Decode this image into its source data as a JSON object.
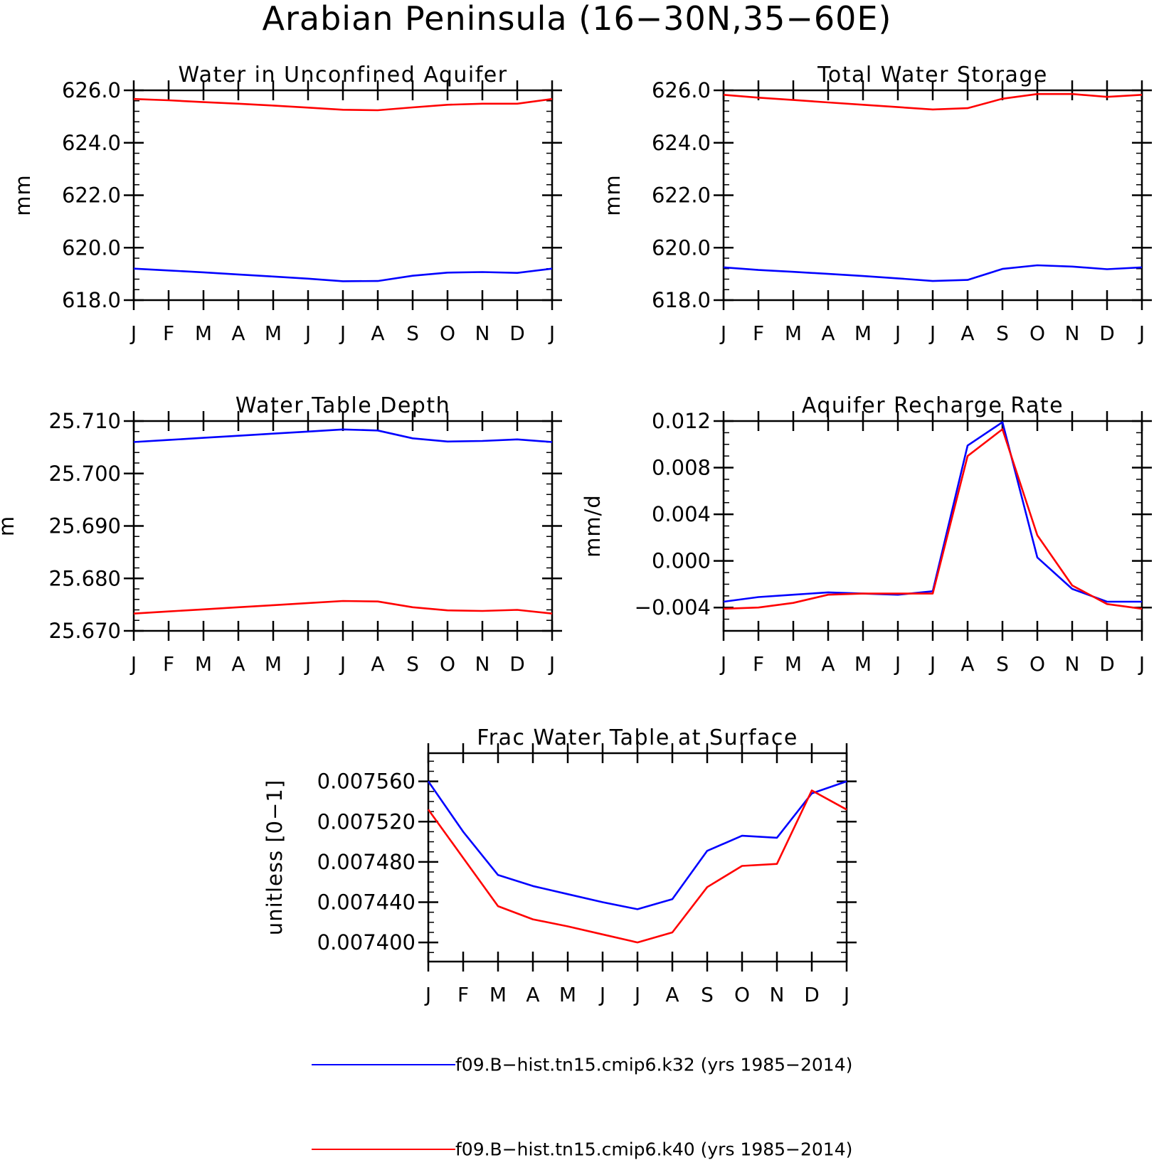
{
  "figure": {
    "title": "Arabian Peninsula (16−30N,35−60E)",
    "months": [
      "J",
      "F",
      "M",
      "A",
      "M",
      "J",
      "J",
      "A",
      "S",
      "O",
      "N",
      "D",
      "J"
    ],
    "colors": {
      "k32": "#0000ff",
      "k40": "#ff0000",
      "axes": "#000000"
    },
    "legend": [
      {
        "label": "f09.B−hist.tn15.cmip6.k32 (yrs 1985−2014)",
        "color": "#0000ff"
      },
      {
        "label": "f09.B−hist.tn15.cmip6.k40 (yrs 1985−2014)",
        "color": "#ff0000"
      }
    ]
  },
  "chart_data": [
    {
      "type": "line",
      "title": "Water in Unconfined Aquifer",
      "ylabel": "mm",
      "ylim": [
        618.0,
        626.0
      ],
      "yticks": [
        618.0,
        620.0,
        622.0,
        624.0,
        626.0
      ],
      "ytick_labels": [
        "618.0",
        "620.0",
        "622.0",
        "624.0",
        "626.0"
      ],
      "yminor_step": 0.4,
      "x": [
        "J",
        "F",
        "M",
        "A",
        "M",
        "J",
        "J",
        "A",
        "S",
        "O",
        "N",
        "D",
        "J"
      ],
      "series": [
        {
          "name": "f09.B−hist.tn15.cmip6.k32",
          "color": "#0000ff",
          "values": [
            619.2,
            619.13,
            619.06,
            618.98,
            618.9,
            618.82,
            618.72,
            618.73,
            618.93,
            619.05,
            619.07,
            619.04,
            619.2
          ]
        },
        {
          "name": "f09.B−hist.tn15.cmip6.k40",
          "color": "#ff0000",
          "values": [
            625.67,
            625.62,
            625.55,
            625.49,
            625.42,
            625.34,
            625.26,
            625.24,
            625.35,
            625.45,
            625.49,
            625.49,
            625.67
          ]
        }
      ]
    },
    {
      "type": "line",
      "title": "Total Water Storage",
      "ylabel": "mm",
      "ylim": [
        618.0,
        626.0
      ],
      "yticks": [
        618.0,
        620.0,
        622.0,
        624.0,
        626.0
      ],
      "ytick_labels": [
        "618.0",
        "620.0",
        "622.0",
        "624.0",
        "626.0"
      ],
      "yminor_step": 0.4,
      "x": [
        "J",
        "F",
        "M",
        "A",
        "M",
        "J",
        "J",
        "A",
        "S",
        "O",
        "N",
        "D",
        "J"
      ],
      "series": [
        {
          "name": "f09.B−hist.tn15.cmip6.k32",
          "color": "#0000ff",
          "values": [
            619.25,
            619.15,
            619.08,
            619.0,
            618.92,
            618.83,
            618.73,
            618.77,
            619.19,
            619.33,
            619.28,
            619.18,
            619.25
          ]
        },
        {
          "name": "f09.B−hist.tn15.cmip6.k40",
          "color": "#ff0000",
          "values": [
            625.83,
            625.72,
            625.63,
            625.54,
            625.45,
            625.36,
            625.27,
            625.32,
            625.68,
            625.86,
            625.86,
            625.75,
            625.83
          ]
        }
      ]
    },
    {
      "type": "line",
      "title": "Water Table Depth",
      "ylabel": "m",
      "ylim": [
        25.67,
        25.71
      ],
      "yticks": [
        25.67,
        25.68,
        25.69,
        25.7,
        25.71
      ],
      "ytick_labels": [
        "25.670",
        "25.680",
        "25.690",
        "25.700",
        "25.710"
      ],
      "yminor_step": 0.002,
      "x": [
        "J",
        "F",
        "M",
        "A",
        "M",
        "J",
        "J",
        "A",
        "S",
        "O",
        "N",
        "D",
        "J"
      ],
      "series": [
        {
          "name": "f09.B−hist.tn15.cmip6.k32",
          "color": "#0000ff",
          "values": [
            25.706,
            25.7064,
            25.7068,
            25.7072,
            25.7076,
            25.708,
            25.7084,
            25.7082,
            25.7067,
            25.7061,
            25.7062,
            25.7065,
            25.706
          ]
        },
        {
          "name": "f09.B−hist.tn15.cmip6.k40",
          "color": "#ff0000",
          "values": [
            25.6733,
            25.6737,
            25.6741,
            25.6745,
            25.6749,
            25.6753,
            25.6757,
            25.6756,
            25.6745,
            25.6739,
            25.6738,
            25.674,
            25.6733
          ]
        }
      ]
    },
    {
      "type": "line",
      "title": "Aquifer Recharge Rate",
      "ylabel": "mm/d",
      "ylim": [
        -0.006,
        0.012
      ],
      "yticks": [
        -0.004,
        0.0,
        0.004,
        0.008,
        0.012
      ],
      "ytick_labels": [
        "−0.004",
        "0.000",
        "0.004",
        "0.008",
        "0.012"
      ],
      "yminor_step": 0.001,
      "x": [
        "J",
        "F",
        "M",
        "A",
        "M",
        "J",
        "J",
        "A",
        "S",
        "O",
        "N",
        "D",
        "J"
      ],
      "series": [
        {
          "name": "f09.B−hist.tn15.cmip6.k32",
          "color": "#0000ff",
          "values": [
            -0.0035,
            -0.0031,
            -0.0029,
            -0.0027,
            -0.0028,
            -0.0029,
            -0.0026,
            0.0099,
            0.0119,
            0.0003,
            -0.0024,
            -0.0035,
            -0.0035
          ]
        },
        {
          "name": "f09.B−hist.tn15.cmip6.k40",
          "color": "#ff0000",
          "values": [
            -0.0041,
            -0.004,
            -0.0036,
            -0.0029,
            -0.0028,
            -0.0028,
            -0.0028,
            0.009,
            0.0113,
            0.0022,
            -0.0021,
            -0.0037,
            -0.0041
          ]
        }
      ]
    },
    {
      "type": "line",
      "title": "Frac Water Table at Surface",
      "ylabel": "unitless [0−1]",
      "ylim": [
        0.007381,
        0.007588
      ],
      "yticks": [
        0.0074,
        0.00744,
        0.00748,
        0.00752,
        0.00756
      ],
      "ytick_labels": [
        "0.007400",
        "0.007440",
        "0.007480",
        "0.007520",
        "0.007560"
      ],
      "yminor_step": 1e-05,
      "x": [
        "J",
        "F",
        "M",
        "A",
        "M",
        "J",
        "J",
        "A",
        "S",
        "O",
        "N",
        "D",
        "J"
      ],
      "series": [
        {
          "name": "f09.B−hist.tn15.cmip6.k32",
          "color": "#0000ff",
          "values": [
            0.00756,
            0.00751,
            0.007467,
            0.007456,
            0.007448,
            0.00744,
            0.007433,
            0.007443,
            0.007491,
            0.007506,
            0.007504,
            0.007548,
            0.00756
          ]
        },
        {
          "name": "f09.B−hist.tn15.cmip6.k40",
          "color": "#ff0000",
          "values": [
            0.007532,
            0.007484,
            0.007436,
            0.007423,
            0.007416,
            0.007408,
            0.0074,
            0.00741,
            0.007455,
            0.007476,
            0.007478,
            0.007551,
            0.007532
          ]
        }
      ]
    }
  ]
}
